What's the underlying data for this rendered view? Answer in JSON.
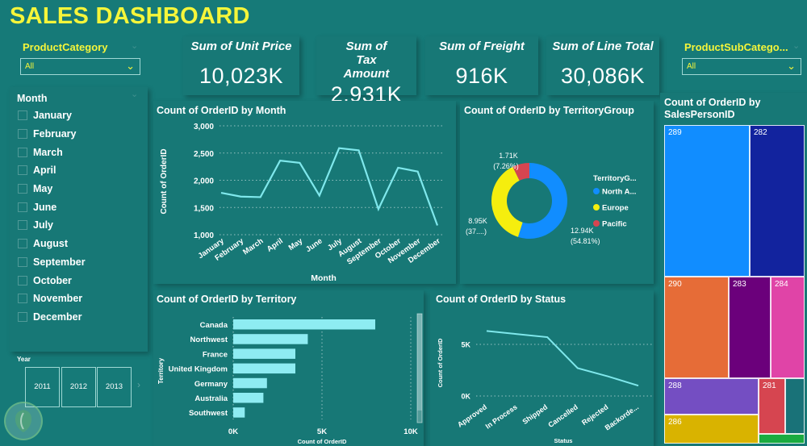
{
  "header": {
    "title": "SALES DASHBOARD"
  },
  "filters": {
    "product_category": {
      "label": "ProductCategory",
      "value": "All"
    },
    "product_subcategory": {
      "label": "ProductSubCatego...",
      "value": "All"
    },
    "month": {
      "label": "Month",
      "items": [
        "January",
        "February",
        "March",
        "April",
        "May",
        "June",
        "July",
        "August",
        "September",
        "October",
        "November",
        "December"
      ]
    },
    "year": {
      "label": "Year",
      "items": [
        "2011",
        "2012",
        "2013"
      ]
    }
  },
  "cards": [
    {
      "title": "Sum of Unit Price",
      "value": "10,023K"
    },
    {
      "title": "Sum of Tax Amount",
      "value": "2,931K"
    },
    {
      "title": "Sum of Freight",
      "value": "916K"
    },
    {
      "title": "Sum of Line Total",
      "value": "30,086K"
    }
  ],
  "colors": {
    "background": "#167a78",
    "accent_yellow": "#f5f53a",
    "line": "#7fe8ec",
    "bar": "#8eecf2"
  },
  "chart_data": [
    {
      "id": "by-month",
      "type": "line",
      "title": "Count of OrderID by Month",
      "xlabel": "Month",
      "ylabel": "Count of OrderID",
      "categories": [
        "January",
        "February",
        "March",
        "April",
        "May",
        "June",
        "July",
        "August",
        "September",
        "October",
        "November",
        "December"
      ],
      "values": [
        1770,
        1700,
        1690,
        2360,
        2320,
        1720,
        2590,
        2550,
        1470,
        2230,
        2160,
        1170
      ],
      "ylim": [
        1000,
        3000
      ],
      "yticks": [
        "1,000",
        "1,500",
        "2,000",
        "2,500",
        "3,000"
      ],
      "ytick_values": [
        1000,
        1500,
        2000,
        2500,
        3000
      ],
      "grid": true
    },
    {
      "id": "by-territory-group",
      "type": "pie",
      "subtype": "donut",
      "title": "Count of OrderID by TerritoryGroup",
      "legend_title": "TerritoryG...",
      "legend_position": "right",
      "slices": [
        {
          "name": "North A...",
          "value": 12940,
          "label": "12.94K",
          "pct_label": "(54.81%)",
          "color": "#118dff"
        },
        {
          "name": "Europe",
          "value": 8950,
          "label": "8.95K",
          "pct_label": "(37....)",
          "color": "#f5ee0e"
        },
        {
          "name": "Pacific",
          "value": 1710,
          "label": "1.71K",
          "pct_label": "(7.26%)",
          "color": "#d64550"
        }
      ]
    },
    {
      "id": "by-salesperson",
      "type": "treemap",
      "title": "Count of OrderID by SalesPersonID",
      "items": [
        {
          "name": "289",
          "color": "#118dff"
        },
        {
          "name": "282",
          "color": "#12239e"
        },
        {
          "name": "290",
          "color": "#e66c37"
        },
        {
          "name": "283",
          "color": "#6b007b"
        },
        {
          "name": "284",
          "color": "#e044a7"
        },
        {
          "name": "288",
          "color": "#744ec2"
        },
        {
          "name": "286",
          "color": "#d9b300"
        },
        {
          "name": "281",
          "color": "#d64550"
        },
        {
          "name": "",
          "color": "#197278"
        },
        {
          "name": "",
          "color": "#1aab40"
        }
      ]
    },
    {
      "id": "by-territory",
      "type": "bar",
      "orientation": "horizontal",
      "title": "Count of OrderID by Territory",
      "xlabel": "Count of OrderID",
      "ylabel": "Territory",
      "categories": [
        "Canada",
        "Northwest",
        "France",
        "United Kingdom",
        "Germany",
        "Australia",
        "Southwest"
      ],
      "values": [
        8000,
        4200,
        3500,
        3500,
        1900,
        1700,
        650
      ],
      "xlim": [
        0,
        10000
      ],
      "xticks": [
        "0K",
        "5K",
        "10K"
      ],
      "xtick_values": [
        0,
        5000,
        10000
      ],
      "grid": true
    },
    {
      "id": "by-status",
      "type": "line",
      "title": "Count of OrderID by Status",
      "xlabel": "Status",
      "ylabel": "Count of OrderID",
      "categories": [
        "Approved",
        "In Process",
        "Shipped",
        "Cancelled",
        "Rejected",
        "Backorde..."
      ],
      "values": [
        6300,
        6000,
        5700,
        2700,
        1900,
        1000
      ],
      "ylim": [
        0,
        7000
      ],
      "yticks": [
        "0K",
        "5K"
      ],
      "ytick_values": [
        0,
        5000
      ],
      "grid": true
    }
  ]
}
